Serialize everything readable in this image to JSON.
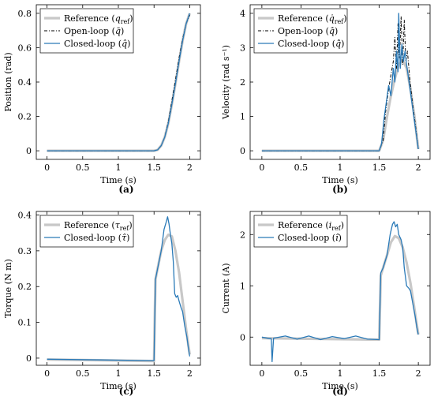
{
  "chart_data": [
    {
      "id": "a",
      "type": "line",
      "caption": "(a)",
      "xlabel": "Time (s)",
      "ylabel": "Position (rad)",
      "xlim": [
        -0.15,
        2.15
      ],
      "ylim": [
        -0.05,
        0.85
      ],
      "xticks": [
        0,
        0.5,
        1,
        1.5,
        2
      ],
      "xtick_labels": [
        "0",
        "0.5",
        "1",
        "1.5",
        "2"
      ],
      "yticks": [
        0,
        0.2,
        0.4,
        0.6,
        0.8
      ],
      "ytick_labels": [
        "0",
        "0.2",
        "0.4",
        "0.6",
        "0.8"
      ],
      "legend_position": "top-left",
      "series": [
        {
          "name": "Reference (q_ref)",
          "legend_text": "Reference (",
          "legend_sym": "q",
          "legend_sub": "ref",
          "style": "reference",
          "color": "#c8c8c8",
          "x": [
            0,
            1.5,
            1.55,
            1.6,
            1.65,
            1.7,
            1.75,
            1.8,
            1.85,
            1.9,
            1.95,
            2.0
          ],
          "y": [
            0,
            0,
            0.005,
            0.03,
            0.08,
            0.16,
            0.27,
            0.39,
            0.52,
            0.64,
            0.74,
            0.8
          ]
        },
        {
          "name": "Open-loop (q)",
          "legend_text": "Open-loop (",
          "legend_sym": "q̄",
          "legend_sub": "",
          "style": "dashdot",
          "color": "#000000",
          "x": [
            0,
            1.5,
            1.55,
            1.6,
            1.65,
            1.7,
            1.75,
            1.8,
            1.85,
            1.9,
            1.95,
            2.0
          ],
          "y": [
            0,
            0,
            0.005,
            0.03,
            0.08,
            0.17,
            0.29,
            0.41,
            0.54,
            0.65,
            0.74,
            0.79
          ]
        },
        {
          "name": "Closed-loop (q)",
          "legend_text": "Closed-loop (",
          "legend_sym": "q̂",
          "legend_sub": "",
          "style": "solid",
          "color": "#2a7ab8",
          "x": [
            0,
            1.5,
            1.55,
            1.6,
            1.65,
            1.7,
            1.75,
            1.8,
            1.85,
            1.9,
            1.95,
            2.0
          ],
          "y": [
            0,
            0,
            0.005,
            0.03,
            0.08,
            0.16,
            0.27,
            0.39,
            0.52,
            0.64,
            0.74,
            0.8
          ]
        }
      ]
    },
    {
      "id": "b",
      "type": "line",
      "caption": "(b)",
      "xlabel": "Time (s)",
      "ylabel": "Velocity (rad s⁻¹)",
      "xlim": [
        -0.15,
        2.15
      ],
      "ylim": [
        -0.25,
        4.25
      ],
      "xticks": [
        0,
        0.5,
        1,
        1.5,
        2
      ],
      "xtick_labels": [
        "0",
        "0.5",
        "1",
        "1.5",
        "2"
      ],
      "yticks": [
        0,
        1,
        2,
        3,
        4
      ],
      "ytick_labels": [
        "0",
        "1",
        "2",
        "3",
        "4"
      ],
      "legend_position": "top-left",
      "series": [
        {
          "name": "Reference (q_ref)",
          "legend_text": "Reference (",
          "legend_sym": "q̇",
          "legend_sub": "ref",
          "style": "reference",
          "color": "#c8c8c8",
          "x": [
            0,
            1.5,
            1.55,
            1.6,
            1.65,
            1.7,
            1.75,
            1.8,
            1.85,
            1.9,
            1.95,
            2.0
          ],
          "y": [
            0,
            0,
            0.3,
            1.0,
            1.6,
            2.1,
            2.5,
            2.65,
            2.4,
            1.8,
            1.0,
            0.05
          ]
        },
        {
          "name": "Open-loop (q)",
          "legend_text": "Open-loop (",
          "legend_sym": "q̄̇",
          "legend_sub": "",
          "style": "dashdot",
          "color": "#000000",
          "x": [
            0,
            1.5,
            1.55,
            1.58,
            1.62,
            1.65,
            1.68,
            1.7,
            1.72,
            1.74,
            1.76,
            1.78,
            1.8,
            1.82,
            1.84,
            1.86,
            1.88,
            1.9,
            1.93,
            1.96,
            2.0
          ],
          "y": [
            0,
            0,
            0.3,
            1.1,
            1.8,
            2.2,
            2.6,
            3.3,
            2.4,
            3.7,
            2.7,
            3.9,
            2.5,
            3.8,
            2.6,
            2.9,
            2.4,
            1.9,
            1.3,
            0.8,
            0.05
          ]
        },
        {
          "name": "Closed-loop (q)",
          "legend_text": "Closed-loop (",
          "legend_sym": "q̂̇",
          "legend_sub": "",
          "style": "solid",
          "color": "#2a7ab8",
          "x": [
            0,
            1.5,
            1.53,
            1.56,
            1.59,
            1.62,
            1.65,
            1.68,
            1.7,
            1.72,
            1.74,
            1.75,
            1.77,
            1.79,
            1.81,
            1.83,
            1.85,
            1.87,
            1.9,
            1.93,
            1.96,
            2.0
          ],
          "y": [
            0,
            0,
            0.2,
            0.9,
            1.4,
            1.9,
            1.6,
            2.4,
            2.0,
            2.9,
            2.3,
            4.0,
            2.4,
            3.1,
            2.6,
            2.9,
            2.5,
            2.2,
            1.7,
            1.2,
            0.7,
            0.05
          ]
        }
      ]
    },
    {
      "id": "c",
      "type": "line",
      "caption": "(c)",
      "xlabel": "Time (s)",
      "ylabel": "Torque (N m)",
      "xlim": [
        -0.15,
        2.15
      ],
      "ylim": [
        -0.02,
        0.41
      ],
      "xticks": [
        0,
        0.5,
        1,
        1.5,
        2
      ],
      "xtick_labels": [
        "0",
        "0.5",
        "1",
        "1.5",
        "2"
      ],
      "yticks": [
        0,
        0.1,
        0.2,
        0.3,
        0.4
      ],
      "ytick_labels": [
        "0",
        "0.1",
        "0.2",
        "0.3",
        "0.4"
      ],
      "legend_position": "top-left",
      "series": [
        {
          "name": "Reference (τ_ref)",
          "legend_text": "Reference (",
          "legend_sym": "τ",
          "legend_sub": "ref",
          "style": "reference",
          "color": "#c8c8c8",
          "x": [
            0,
            1.5,
            1.52,
            1.55,
            1.6,
            1.65,
            1.7,
            1.75,
            1.8,
            1.85,
            1.9,
            1.95,
            2.0
          ],
          "y": [
            -0.004,
            -0.008,
            0.22,
            0.25,
            0.3,
            0.33,
            0.345,
            0.34,
            0.3,
            0.24,
            0.16,
            0.08,
            0.01
          ]
        },
        {
          "name": "Closed-loop (τ)",
          "legend_text": "Closed-loop (",
          "legend_sym": "τ̂",
          "legend_sub": "",
          "style": "solid",
          "color": "#2a7ab8",
          "x": [
            0,
            1.5,
            1.52,
            1.55,
            1.6,
            1.64,
            1.67,
            1.69,
            1.71,
            1.73,
            1.75,
            1.77,
            1.79,
            1.81,
            1.83,
            1.85,
            1.88,
            1.9,
            1.93,
            1.96,
            1.98,
            2.0
          ],
          "y": [
            -0.003,
            -0.007,
            0.22,
            0.25,
            0.3,
            0.36,
            0.38,
            0.395,
            0.375,
            0.345,
            0.32,
            0.27,
            0.18,
            0.17,
            0.175,
            0.16,
            0.14,
            0.13,
            0.09,
            0.06,
            0.03,
            0.005
          ]
        }
      ]
    },
    {
      "id": "d",
      "type": "line",
      "caption": "(d)",
      "xlabel": "Time (s)",
      "ylabel": "Current (A)",
      "xlim": [
        -0.15,
        2.15
      ],
      "ylim": [
        -0.55,
        2.45
      ],
      "xticks": [
        0,
        0.5,
        1,
        1.5,
        2
      ],
      "xtick_labels": [
        "0",
        "0.5",
        "1",
        "1.5",
        "2"
      ],
      "yticks": [
        0,
        1,
        2
      ],
      "ytick_labels": [
        "0",
        "1",
        "2"
      ],
      "legend_position": "top-left",
      "series": [
        {
          "name": "Reference (i_ref)",
          "legend_text": "Reference (",
          "legend_sym": "i",
          "legend_sub": "ref",
          "style": "reference",
          "color": "#c8c8c8",
          "x": [
            0,
            1.5,
            1.52,
            1.55,
            1.6,
            1.65,
            1.7,
            1.75,
            1.8,
            1.85,
            1.9,
            1.95,
            2.0
          ],
          "y": [
            -0.02,
            -0.05,
            1.2,
            1.35,
            1.6,
            1.85,
            1.97,
            1.93,
            1.75,
            1.45,
            1.05,
            0.55,
            0.05
          ]
        },
        {
          "name": "Closed-loop (i)",
          "legend_text": "Closed-loop (",
          "legend_sym": "î",
          "legend_sub": "",
          "style": "solid",
          "color": "#2a7ab8",
          "x": [
            0,
            0.1,
            0.12,
            0.13,
            0.15,
            0.3,
            0.45,
            0.6,
            0.75,
            0.9,
            1.05,
            1.2,
            1.35,
            1.5,
            1.52,
            1.55,
            1.6,
            1.64,
            1.67,
            1.69,
            1.71,
            1.73,
            1.75,
            1.78,
            1.8,
            1.82,
            1.85,
            1.88,
            1.9,
            1.93,
            1.96,
            1.98,
            2.0
          ],
          "y": [
            0,
            -0.03,
            -0.03,
            -0.48,
            -0.02,
            0.02,
            -0.04,
            0.02,
            -0.05,
            0.01,
            -0.03,
            0.02,
            -0.04,
            -0.05,
            1.25,
            1.35,
            1.6,
            2.0,
            2.2,
            2.25,
            2.15,
            2.2,
            2.0,
            1.9,
            1.75,
            1.35,
            1.0,
            0.95,
            0.9,
            0.65,
            0.4,
            0.2,
            0.05
          ]
        }
      ]
    }
  ]
}
